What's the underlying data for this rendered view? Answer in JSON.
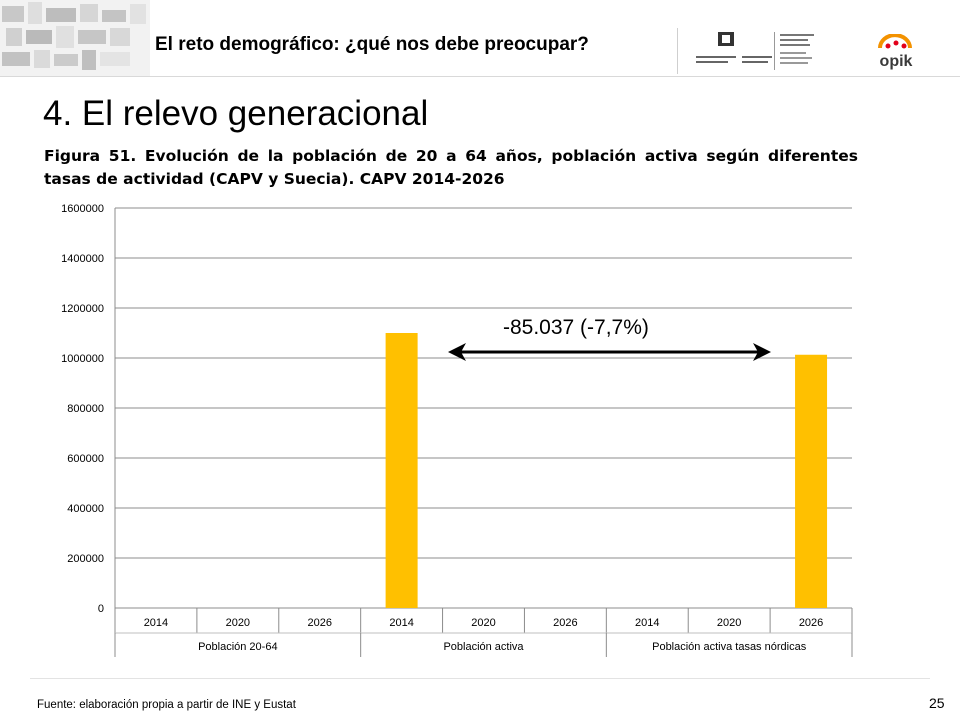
{
  "header": {
    "title": "El reto demográfico: ¿qué nos debe preocupar?",
    "logos": [
      "upv-ehu-logo",
      "opik-logo"
    ],
    "opik_text": "opik"
  },
  "slide": {
    "title": "4. El relevo generacional",
    "caption": "Figura 51. Evolución de la población de 20 a 64 años, población activa según diferentes tasas de actividad (CAPV y Suecia).  CAPV 2014-2026",
    "annotation": "-85.037 (-7,7%)",
    "source": "Fuente: elaboración propia a partir de INE y Eustat",
    "page_number": "25"
  },
  "chart_data": {
    "type": "bar",
    "categories": [
      "2014",
      "2020",
      "2026",
      "2014",
      "2020",
      "2026",
      "2014",
      "2020",
      "2026"
    ],
    "groups": [
      {
        "label": "Población 20-64",
        "span": 3
      },
      {
        "label": "Población activa",
        "span": 3
      },
      {
        "label": "Población activa tasas nórdicas",
        "span": 3
      }
    ],
    "values": [
      null,
      null,
      null,
      1100000,
      null,
      null,
      null,
      null,
      1013000
    ],
    "ylim": [
      0,
      1600000
    ],
    "yticks": [
      0,
      200000,
      400000,
      600000,
      800000,
      1000000,
      1200000,
      1400000,
      1600000
    ],
    "ytick_labels": [
      "0",
      "200000",
      "400000",
      "600000",
      "800000",
      "1000000",
      "1200000",
      "1400000",
      "1600000"
    ],
    "grid": true,
    "bar_color": "#FFC000",
    "title": "",
    "xlabel": "",
    "ylabel": ""
  }
}
